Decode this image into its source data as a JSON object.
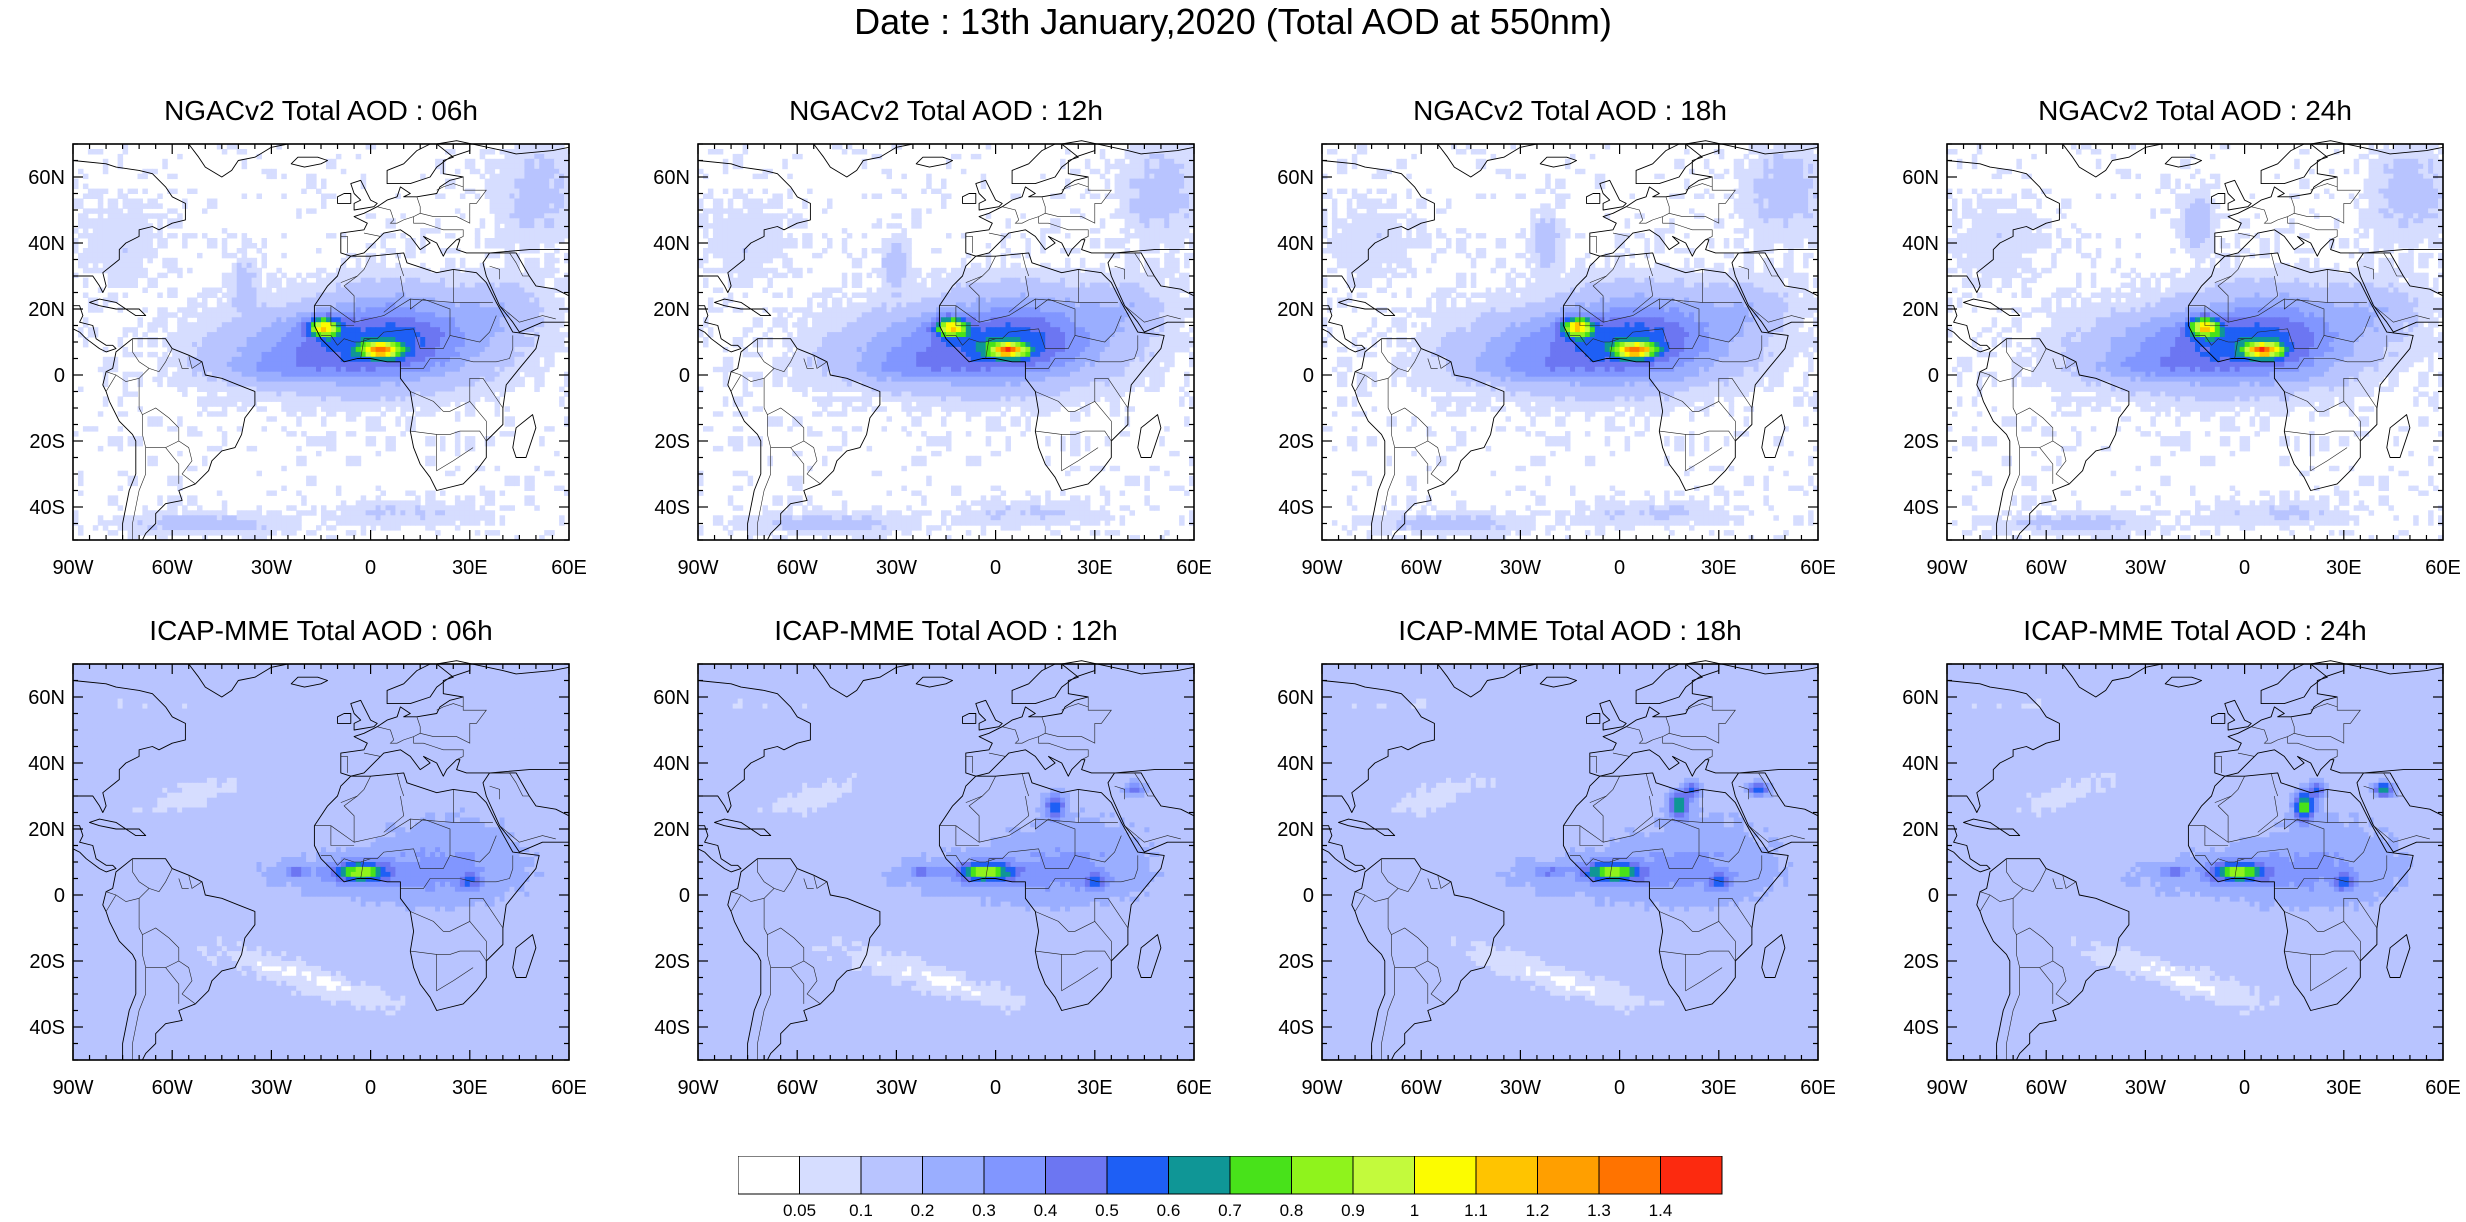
{
  "title": "Date : 13th January,2020 (Total AOD at 550nm)",
  "axis": {
    "lat_labels": [
      "60N",
      "40N",
      "20N",
      "0",
      "20S",
      "40S"
    ],
    "lat_values": [
      60,
      40,
      20,
      0,
      -20,
      -40
    ],
    "lon_labels": [
      "90W",
      "60W",
      "30W",
      "0",
      "30E",
      "60E"
    ],
    "lon_values": [
      -90,
      -60,
      -30,
      0,
      30,
      60
    ],
    "lon_range": [
      -90,
      60
    ],
    "lat_range": [
      -50,
      70
    ]
  },
  "panels": [
    {
      "title": "NGACv2 Total AOD : 06h",
      "model": "ngac"
    },
    {
      "title": "NGACv2 Total AOD : 12h",
      "model": "ngac"
    },
    {
      "title": "NGACv2 Total AOD : 18h",
      "model": "ngac"
    },
    {
      "title": "NGACv2 Total AOD : 24h",
      "model": "ngac"
    },
    {
      "title": "ICAP-MME Total AOD : 06h",
      "model": "icap"
    },
    {
      "title": "ICAP-MME Total AOD : 12h",
      "model": "icap"
    },
    {
      "title": "ICAP-MME Total AOD : 18h",
      "model": "icap"
    },
    {
      "title": "ICAP-MME Total AOD : 24h",
      "model": "icap"
    }
  ],
  "colorbar": {
    "colors": [
      "#ffffff",
      "#d6ddff",
      "#b8c4ff",
      "#9aaeff",
      "#8196ff",
      "#6c76f2",
      "#1e5ff5",
      "#0f9696",
      "#48e21a",
      "#8ff31c",
      "#c3fa3c",
      "#fcfc00",
      "#ffc400",
      "#ff9f00",
      "#ff7300",
      "#fc2a0f"
    ],
    "labels": [
      "0.05",
      "0.1",
      "0.2",
      "0.3",
      "0.4",
      "0.5",
      "0.6",
      "0.7",
      "0.8",
      "0.9",
      "1",
      "1.1",
      "1.2",
      "1.3",
      "1.4"
    ]
  }
}
